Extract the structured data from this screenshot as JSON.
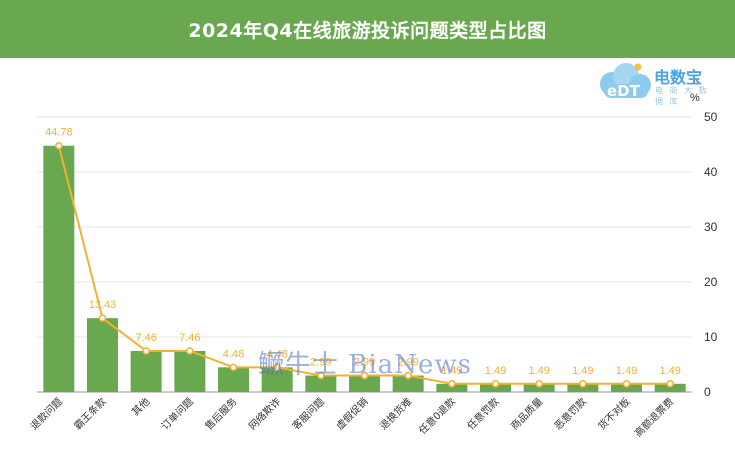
{
  "header": {
    "title": "2024年Q4在线旅游投诉问题类型占比图"
  },
  "logo": {
    "badge": "eDT",
    "name": "电数宝",
    "tagline": "电 商 大 数 据 库"
  },
  "watermark": "鳜牛士 BiaNews",
  "colors": {
    "header": "#69a84f",
    "bar": "#69a84f",
    "line": "#f2b134",
    "label": "#f2b134"
  },
  "chart_data": {
    "type": "bar",
    "title": "2024年Q4在线旅游投诉问题类型占比图",
    "ylabel": "%",
    "ylim": [
      0,
      50
    ],
    "yticks": [
      0,
      10,
      20,
      30,
      40,
      50
    ],
    "grid": true,
    "y_axis_position": "right",
    "categories": [
      "退款问题",
      "霸王条款",
      "其他",
      "订单问题",
      "售后服务",
      "网络欺诈",
      "客服问题",
      "虚假促销",
      "退换货难",
      "任意0退款",
      "任意罚款",
      "商品质量",
      "恶意罚款",
      "货不对板",
      "高额退票费"
    ],
    "series": [
      {
        "type": "bar",
        "values": [
          44.78,
          13.43,
          7.46,
          7.46,
          4.48,
          4.48,
          2.99,
          2.99,
          2.99,
          1.49,
          1.49,
          1.49,
          1.49,
          1.49,
          1.49
        ]
      },
      {
        "type": "line",
        "values": [
          44.78,
          13.43,
          7.46,
          7.46,
          4.48,
          4.48,
          2.99,
          2.99,
          2.99,
          1.49,
          1.49,
          1.49,
          1.49,
          1.49,
          1.49
        ]
      }
    ],
    "data_labels": [
      "44.78",
      "13.43",
      "7.46",
      "7.46",
      "4.48",
      "4.48",
      "2.99",
      "2.99",
      "2.99",
      "1.49",
      "1.49",
      "1.49",
      "1.49",
      "1.49",
      "1.49"
    ]
  }
}
